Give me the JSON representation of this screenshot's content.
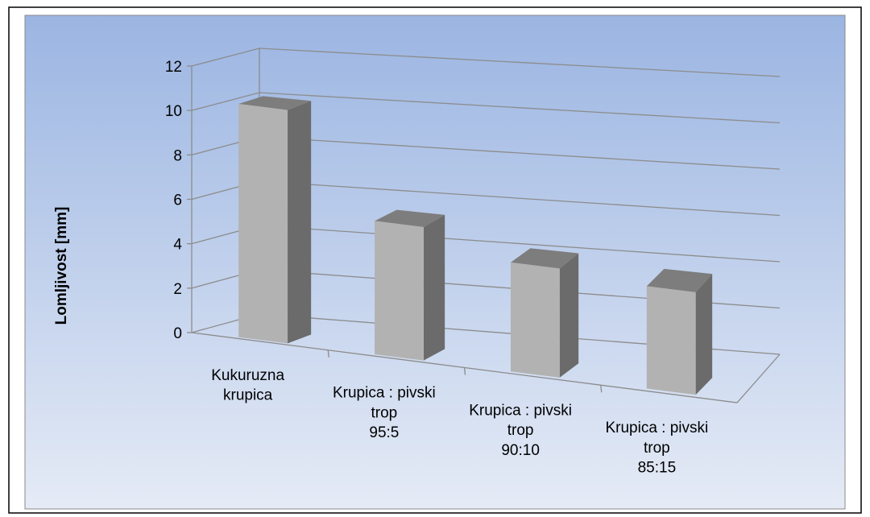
{
  "chart_data": {
    "type": "bar3d",
    "y_axis_label": "Lomljivost [mm]",
    "categories": [
      "Kukuruzna\nkrupica",
      "Krupica : pivski\ntrop\n95:5",
      "Krupica : pivski\ntrop\n90:10",
      "Krupica : pivski\ntrop\n85:15"
    ],
    "values": [
      10.5,
      6,
      4.9,
      4.6
    ],
    "color": "#b2b2b2",
    "ylim": [
      0,
      12
    ],
    "yticks": [
      0,
      2,
      4,
      6,
      8,
      10,
      12
    ],
    "grid": true
  }
}
